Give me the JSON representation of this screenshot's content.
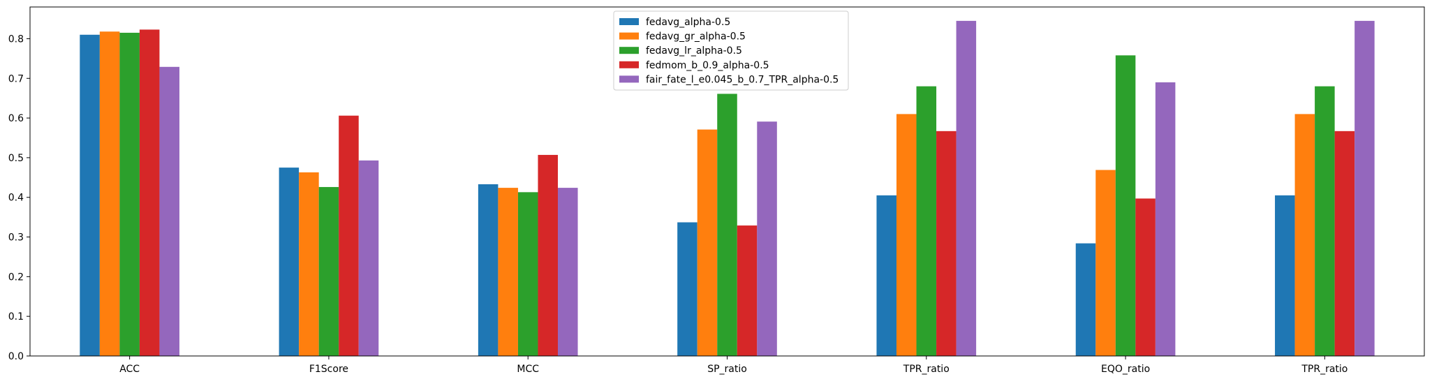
{
  "chart_data": {
    "type": "bar",
    "title": "",
    "xlabel": "",
    "ylabel": "",
    "categories": [
      "ACC",
      "F1Score",
      "MCC",
      "SP_ratio",
      "TPR_ratio",
      "EQO_ratio",
      "TPR_ratio"
    ],
    "ylim": [
      0,
      0.88
    ],
    "yticks": [
      0.0,
      0.1,
      0.2,
      0.3,
      0.4,
      0.5,
      0.6,
      0.7,
      0.8
    ],
    "ytick_labels": [
      "0.0",
      "0.1",
      "0.2",
      "0.3",
      "0.4",
      "0.5",
      "0.6",
      "0.7",
      "0.8"
    ],
    "grid": false,
    "legend_position": "top-center",
    "series": [
      {
        "name": "fedavg_alpha-0.5",
        "color": "#1f77b4",
        "values": [
          0.81,
          0.475,
          0.433,
          0.337,
          0.405,
          0.284,
          0.405
        ]
      },
      {
        "name": "fedavg_gr_alpha-0.5",
        "color": "#ff7f0e",
        "values": [
          0.818,
          0.463,
          0.424,
          0.571,
          0.61,
          0.469,
          0.61
        ]
      },
      {
        "name": "fedavg_lr_alpha-0.5",
        "color": "#2ca02c",
        "values": [
          0.815,
          0.426,
          0.413,
          0.661,
          0.68,
          0.758,
          0.68
        ]
      },
      {
        "name": "fedmom_b_0.9_alpha-0.5",
        "color": "#d62728",
        "values": [
          0.823,
          0.606,
          0.507,
          0.329,
          0.567,
          0.397,
          0.567
        ]
      },
      {
        "name": "fair_fate_l_e0.045_b_0.7_TPR_alpha-0.5",
        "color": "#9467bd",
        "values": [
          0.729,
          0.493,
          0.424,
          0.591,
          0.845,
          0.69,
          0.845
        ]
      }
    ]
  }
}
